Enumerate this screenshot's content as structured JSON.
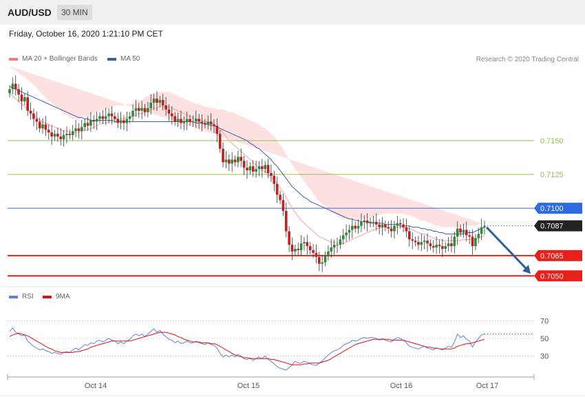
{
  "header": {
    "pair": "AUD/USD",
    "timeframe": "30 MIN",
    "datetime": "Friday, October 16, 2020 1:21:10 PM CET"
  },
  "legend": {
    "ma20": {
      "label": "MA 20 + Bollinger Bands",
      "color": "#f08080"
    },
    "ma50": {
      "label": "MA 50",
      "color": "#3a5fa8"
    },
    "rsi": {
      "label": "RSI",
      "color": "#5b84d6"
    },
    "ma9": {
      "label": "9MA",
      "color": "#e01010"
    }
  },
  "copyright": "Research © 2020 Trading Central",
  "chart_data": [
    {
      "type": "candlestick",
      "title": "AUD/USD",
      "timeframe": "30 MIN",
      "ylim": [
        0.7042,
        0.7205
      ],
      "x_ticks": [
        "Oct 14",
        "Oct 15",
        "Oct 16",
        "Oct 17"
      ],
      "current_price": {
        "value": 0.7087,
        "label": "0.7087",
        "color": "#222222"
      },
      "levels": [
        {
          "value": 0.715,
          "label": "0.7150",
          "color": "#8cc152",
          "kind": "resistance"
        },
        {
          "value": 0.7125,
          "label": "0.7125",
          "color": "#8cc152",
          "kind": "resistance"
        },
        {
          "value": 0.71,
          "label": "0.7100",
          "color": "#2f6be0",
          "kind": "pivot"
        },
        {
          "value": 0.7065,
          "label": "0.7065",
          "color": "#e8201a",
          "kind": "target"
        },
        {
          "value": 0.705,
          "label": "0.7050",
          "color": "#e8201a",
          "kind": "target"
        }
      ],
      "projection": {
        "from": 0.7087,
        "to": 0.705,
        "color": "#2f5da0"
      },
      "candles": {
        "bull_color": "#2e8b3a",
        "bear_color": "#c0201e",
        "close": [
          0.7188,
          0.7192,
          0.7188,
          0.7184,
          0.7179,
          0.7182,
          0.7172,
          0.717,
          0.7166,
          0.7164,
          0.7159,
          0.7162,
          0.7158,
          0.7156,
          0.7153,
          0.7155,
          0.7153,
          0.7151,
          0.7154,
          0.7155,
          0.7154,
          0.7157,
          0.7159,
          0.7157,
          0.716,
          0.7163,
          0.7161,
          0.7165,
          0.7164,
          0.7166,
          0.7168,
          0.7166,
          0.7168,
          0.717,
          0.7168,
          0.7166,
          0.7163,
          0.7165,
          0.7163,
          0.7166,
          0.7168,
          0.7172,
          0.7174,
          0.7172,
          0.7174,
          0.7171,
          0.7174,
          0.7178,
          0.7181,
          0.7178,
          0.718,
          0.7176,
          0.7173,
          0.717,
          0.7168,
          0.7164,
          0.7166,
          0.7163,
          0.7164,
          0.7166,
          0.7164,
          0.7164,
          0.7166,
          0.7164,
          0.7163,
          0.7162,
          0.7164,
          0.7162,
          0.7161,
          0.7155,
          0.7144,
          0.7134,
          0.7136,
          0.7133,
          0.7136,
          0.7134,
          0.7138,
          0.7135,
          0.713,
          0.7128,
          0.7131,
          0.7127,
          0.7129,
          0.7131,
          0.7129,
          0.7132,
          0.7126,
          0.7124,
          0.7118,
          0.711,
          0.7106,
          0.7098,
          0.7083,
          0.7073,
          0.7068,
          0.707,
          0.7069,
          0.7074,
          0.7075,
          0.7072,
          0.7069,
          0.7067,
          0.7064,
          0.7059,
          0.706,
          0.7065,
          0.7068,
          0.7071,
          0.7073,
          0.7073,
          0.7077,
          0.708,
          0.7082,
          0.7084,
          0.7087,
          0.7085,
          0.7087,
          0.709,
          0.7091,
          0.7089,
          0.709,
          0.709,
          0.7088,
          0.7086,
          0.7088,
          0.7086,
          0.7085,
          0.7083,
          0.7087,
          0.7089,
          0.7088,
          0.7086,
          0.7083,
          0.7077,
          0.7076,
          0.7075,
          0.7073,
          0.7075,
          0.7076,
          0.7074,
          0.7072,
          0.7071,
          0.7073,
          0.7072,
          0.707,
          0.7072,
          0.7074,
          0.7072,
          0.7079,
          0.7085,
          0.7082,
          0.7084,
          0.708,
          0.7079,
          0.7072,
          0.7078,
          0.7081,
          0.7086,
          0.7087
        ]
      },
      "ma20": [
        0.7185,
        0.7183,
        0.7181,
        0.7179,
        0.7177,
        0.7175,
        0.7173,
        0.7171,
        0.7169,
        0.7167,
        0.7165,
        0.7164,
        0.7163,
        0.7162,
        0.7161,
        0.716,
        0.7159,
        0.7158,
        0.7157,
        0.7157,
        0.7156,
        0.7156,
        0.7156,
        0.7156,
        0.7157,
        0.7158,
        0.7158,
        0.7159,
        0.716,
        0.7161,
        0.7162,
        0.7163,
        0.7163,
        0.7164,
        0.7165,
        0.7166,
        0.7166,
        0.7166,
        0.7166,
        0.7167,
        0.7167,
        0.7168,
        0.7169,
        0.717,
        0.717,
        0.7171,
        0.7172,
        0.7173,
        0.7174,
        0.7174,
        0.7175,
        0.7175,
        0.7175,
        0.7175,
        0.7174,
        0.7173,
        0.7172,
        0.7171,
        0.717,
        0.7169,
        0.7168,
        0.7167,
        0.7166,
        0.7166,
        0.7165,
        0.7164,
        0.7164,
        0.7163,
        0.7162,
        0.716,
        0.7158,
        0.7156,
        0.7153,
        0.715,
        0.7148,
        0.7146,
        0.7144,
        0.7142,
        0.714,
        0.7138,
        0.7136,
        0.7134,
        0.7132,
        0.713,
        0.7128,
        0.7127,
        0.7125,
        0.7123,
        0.7121,
        0.7118,
        0.7115,
        0.7112,
        0.7108,
        0.7104,
        0.71,
        0.7097,
        0.7094,
        0.7091,
        0.7089,
        0.7087,
        0.7085,
        0.7083,
        0.7081,
        0.7079,
        0.7078,
        0.7077,
        0.7076,
        0.7075,
        0.7075,
        0.7074,
        0.7074,
        0.7074,
        0.7075,
        0.7076,
        0.7077,
        0.7078,
        0.7079,
        0.708,
        0.7081,
        0.7082,
        0.7083,
        0.7084,
        0.7085,
        0.7085,
        0.7086,
        0.7086,
        0.7086,
        0.7086,
        0.7086,
        0.7086,
        0.7086,
        0.7086,
        0.7085,
        0.7085,
        0.7084,
        0.7083,
        0.7082,
        0.7081,
        0.7081,
        0.708,
        0.7079,
        0.7078,
        0.7077,
        0.7077,
        0.7076,
        0.7076,
        0.7076,
        0.7076,
        0.7076,
        0.7076,
        0.7076,
        0.7077,
        0.7077,
        0.7077,
        0.7077,
        0.7077,
        0.7078,
        0.7079,
        0.708
      ],
      "ma50": [
        0.719,
        0.7189,
        0.7188,
        0.7187,
        0.7186,
        0.7185,
        0.7184,
        0.7183,
        0.7182,
        0.7181,
        0.718,
        0.7179,
        0.7178,
        0.7177,
        0.7176,
        0.7175,
        0.7174,
        0.7173,
        0.7172,
        0.7171,
        0.717,
        0.7169,
        0.7168,
        0.7167,
        0.7167,
        0.7166,
        0.7166,
        0.7165,
        0.7165,
        0.7165,
        0.7165,
        0.7165,
        0.7165,
        0.7165,
        0.7165,
        0.7164,
        0.7164,
        0.7164,
        0.7164,
        0.7164,
        0.7164,
        0.7164,
        0.7164,
        0.7164,
        0.7164,
        0.7164,
        0.7164,
        0.7164,
        0.7164,
        0.7164,
        0.7164,
        0.7164,
        0.7164,
        0.7164,
        0.7164,
        0.7164,
        0.7164,
        0.7164,
        0.7164,
        0.7164,
        0.7164,
        0.7164,
        0.7163,
        0.7163,
        0.7163,
        0.7162,
        0.7162,
        0.7161,
        0.7161,
        0.716,
        0.7159,
        0.7158,
        0.7157,
        0.7156,
        0.7155,
        0.7154,
        0.7153,
        0.7152,
        0.7151,
        0.715,
        0.7148,
        0.7147,
        0.7145,
        0.7144,
        0.7142,
        0.714,
        0.7138,
        0.7136,
        0.7133,
        0.7131,
        0.7128,
        0.7125,
        0.7122,
        0.7119,
        0.7116,
        0.7114,
        0.7112,
        0.711,
        0.7108,
        0.7107,
        0.7105,
        0.7104,
        0.7103,
        0.7102,
        0.7101,
        0.71,
        0.7099,
        0.7098,
        0.7097,
        0.7096,
        0.7095,
        0.7094,
        0.7093,
        0.7092,
        0.7092,
        0.7091,
        0.7091,
        0.709,
        0.709,
        0.709,
        0.7089,
        0.7089,
        0.7089,
        0.7089,
        0.7089,
        0.7088,
        0.7088,
        0.7088,
        0.7088,
        0.7088,
        0.7087,
        0.7087,
        0.7087,
        0.7087,
        0.7086,
        0.7086,
        0.7086,
        0.7085,
        0.7085,
        0.7084,
        0.7084,
        0.7083,
        0.7083,
        0.7082,
        0.7082,
        0.7081,
        0.7081,
        0.7081,
        0.7081,
        0.7081,
        0.7081,
        0.7081,
        0.7082,
        0.7082,
        0.7082,
        0.7083,
        0.7084,
        0.7085,
        0.7086
      ],
      "bollinger_width": [
        0.002,
        0.002,
        0.0021,
        0.0021,
        0.0021,
        0.0022,
        0.0022,
        0.0022,
        0.0022,
        0.0022,
        0.0021,
        0.002,
        0.0019,
        0.0018,
        0.0017,
        0.0016,
        0.0015,
        0.0014,
        0.0013,
        0.0012,
        0.0011,
        0.001,
        0.001,
        0.001,
        0.001,
        0.001,
        0.001,
        0.001,
        0.001,
        0.001,
        0.001,
        0.001,
        0.001,
        0.001,
        0.001,
        0.001,
        0.001,
        0.001,
        0.001,
        0.001,
        0.001,
        0.001,
        0.001,
        0.001,
        0.001,
        0.0011,
        0.0011,
        0.0011,
        0.0011,
        0.0011,
        0.0011,
        0.0011,
        0.0011,
        0.0011,
        0.0011,
        0.0011,
        0.0011,
        0.0011,
        0.0011,
        0.0011,
        0.0011,
        0.0011,
        0.0011,
        0.0011,
        0.0011,
        0.0011,
        0.0011,
        0.0011,
        0.0012,
        0.0013,
        0.0015,
        0.0017,
        0.0019,
        0.0021,
        0.0023,
        0.0024,
        0.0025,
        0.0026,
        0.0027,
        0.0028,
        0.0029,
        0.003,
        0.0031,
        0.0032,
        0.0032,
        0.0032,
        0.0032,
        0.0032,
        0.0032,
        0.0032,
        0.0032,
        0.0032,
        0.0032,
        0.0032,
        0.0032,
        0.0032,
        0.0032,
        0.0032,
        0.0031,
        0.003,
        0.0029,
        0.0028,
        0.0027,
        0.0026,
        0.0025,
        0.0024,
        0.0023,
        0.0022,
        0.0021,
        0.002,
        0.0019,
        0.0018,
        0.0017,
        0.0016,
        0.0015,
        0.0014,
        0.0013,
        0.0012,
        0.0011,
        0.001,
        0.001,
        0.001,
        0.001,
        0.001,
        0.001,
        0.001,
        0.001,
        0.001,
        0.001,
        0.001,
        0.001,
        0.001,
        0.001,
        0.001,
        0.001,
        0.001,
        0.001,
        0.001,
        0.001,
        0.001,
        0.001,
        0.001,
        0.001,
        0.001,
        0.001,
        0.001,
        0.001,
        0.001,
        0.001,
        0.001,
        0.001,
        0.001,
        0.001,
        0.001,
        0.001,
        0.001,
        0.001,
        0.001
      ],
      "grid": false
    },
    {
      "type": "line",
      "title": "RSI",
      "ylim": [
        10,
        90
      ],
      "y_levels": [
        70,
        50,
        30
      ],
      "series": [
        {
          "name": "RSI",
          "color": "#5b84d6",
          "values": [
            58,
            62,
            57,
            55,
            53,
            54,
            47,
            44,
            41,
            39,
            37,
            38,
            36,
            35,
            33,
            34,
            33,
            32,
            34,
            35,
            34,
            37,
            39,
            37,
            40,
            43,
            42,
            45,
            44,
            47,
            48,
            46,
            48,
            50,
            48,
            47,
            44,
            46,
            44,
            47,
            49,
            53,
            55,
            53,
            55,
            52,
            55,
            58,
            61,
            57,
            59,
            55,
            52,
            49,
            48,
            45,
            47,
            44,
            45,
            47,
            45,
            45,
            47,
            45,
            44,
            43,
            45,
            43,
            42,
            39,
            33,
            29,
            31,
            29,
            31,
            29,
            32,
            30,
            27,
            26,
            28,
            25,
            27,
            29,
            27,
            30,
            26,
            24,
            21,
            18,
            16,
            15,
            14,
            17,
            20,
            24,
            22,
            22,
            24,
            23,
            21,
            20,
            19,
            22,
            24,
            28,
            31,
            34,
            36,
            37,
            39,
            42,
            44,
            45,
            48,
            47,
            48,
            50,
            51,
            50,
            51,
            51,
            50,
            48,
            50,
            48,
            47,
            46,
            49,
            51,
            50,
            48,
            45,
            41,
            40,
            39,
            38,
            40,
            41,
            39,
            38,
            37,
            39,
            38,
            37,
            39,
            41,
            40,
            46,
            55,
            51,
            53,
            49,
            47,
            40,
            46,
            50,
            54,
            55
          ]
        },
        {
          "name": "9MA",
          "color": "#e01010",
          "values": [
            52,
            54,
            55,
            56,
            55,
            54,
            53,
            51,
            49,
            47,
            45,
            43,
            41,
            39,
            38,
            36,
            35,
            34,
            34,
            34,
            34,
            34,
            35,
            35,
            36,
            37,
            38,
            40,
            41,
            42,
            43,
            44,
            45,
            46,
            47,
            47,
            47,
            47,
            47,
            47,
            47,
            48,
            49,
            50,
            51,
            52,
            53,
            54,
            55,
            56,
            57,
            57,
            57,
            56,
            55,
            54,
            52,
            51,
            49,
            48,
            47,
            46,
            46,
            46,
            45,
            45,
            45,
            44,
            44,
            43,
            41,
            39,
            37,
            35,
            33,
            31,
            30,
            29,
            28,
            28,
            27,
            27,
            27,
            27,
            27,
            27,
            27,
            26,
            26,
            25,
            24,
            23,
            22,
            21,
            20,
            20,
            20,
            20,
            21,
            21,
            22,
            22,
            22,
            22,
            23,
            24,
            25,
            27,
            29,
            31,
            33,
            35,
            37,
            39,
            41,
            43,
            44,
            45,
            46,
            47,
            48,
            49,
            49,
            49,
            49,
            49,
            49,
            48,
            48,
            48,
            48,
            48,
            47,
            46,
            45,
            44,
            43,
            42,
            41,
            40,
            40,
            39,
            39,
            38,
            38,
            38,
            38,
            38,
            39,
            41,
            42,
            43,
            44,
            44,
            45,
            46,
            47,
            48,
            49
          ]
        }
      ],
      "x_ticks": [
        "Oct 14",
        "Oct 15",
        "Oct 16",
        "Oct 17"
      ],
      "grid": false
    }
  ]
}
